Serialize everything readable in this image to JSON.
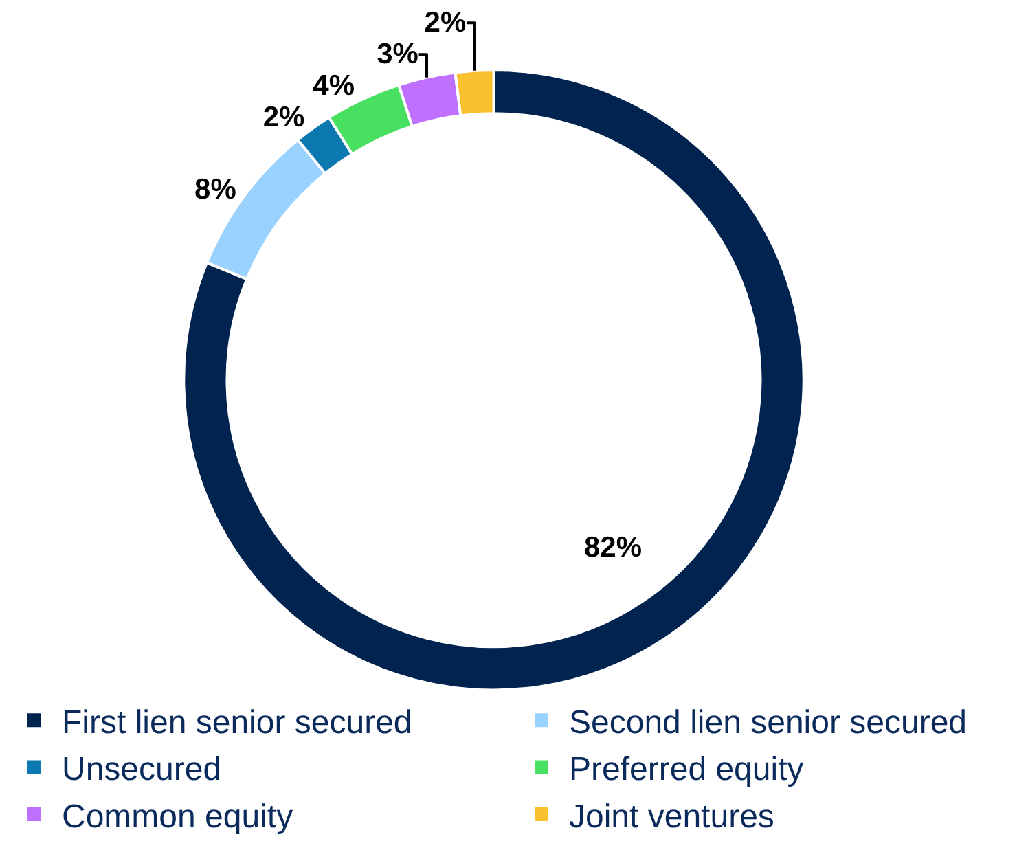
{
  "chart_data": {
    "type": "donut",
    "categories": [
      "First lien senior secured",
      "Second lien senior secured",
      "Unsecured",
      "Preferred equity",
      "Common equity",
      "Joint ventures"
    ],
    "values": [
      82,
      8,
      2,
      4,
      3,
      2
    ],
    "value_labels": [
      "82%",
      "8%",
      "2%",
      "4%",
      "3%",
      "2%"
    ],
    "colors": [
      "#00234f",
      "#99d1ff",
      "#0b78b0",
      "#48e060",
      "#c070ff",
      "#fbc02d"
    ],
    "legend": "bottom"
  }
}
